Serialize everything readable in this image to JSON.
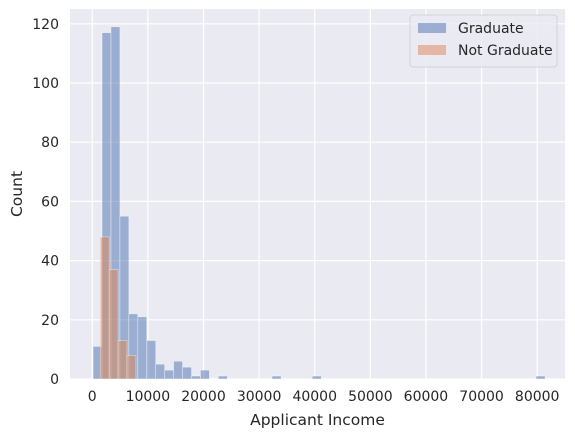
{
  "chart_data": {
    "type": "bar",
    "subtype": "histogram",
    "xlabel": "Applicant Income",
    "ylabel": "Count",
    "xlim": [
      -4000,
      85000
    ],
    "ylim": [
      0,
      125
    ],
    "x_ticks": [
      0,
      10000,
      20000,
      30000,
      40000,
      50000,
      60000,
      70000,
      80000
    ],
    "x_tick_labels": [
      "0",
      "10000",
      "20000",
      "30000",
      "40000",
      "50000",
      "60000",
      "70000",
      "80000"
    ],
    "y_ticks": [
      0,
      20,
      40,
      60,
      80,
      100,
      120
    ],
    "y_tick_labels": [
      "0",
      "20",
      "40",
      "60",
      "80",
      "100",
      "120"
    ],
    "grid": true,
    "background_color": "#eaeaf2",
    "legend_position": "top-right",
    "series": [
      {
        "name": "Graduate",
        "color": "#4c72b0",
        "alpha": 0.5,
        "bins": [
          {
            "x0": 150,
            "x1": 1759,
            "count": 11
          },
          {
            "x0": 1759,
            "x1": 3368,
            "count": 117
          },
          {
            "x0": 3368,
            "x1": 4977,
            "count": 119
          },
          {
            "x0": 4977,
            "x1": 6586,
            "count": 55
          },
          {
            "x0": 6586,
            "x1": 8195,
            "count": 22
          },
          {
            "x0": 8195,
            "x1": 9804,
            "count": 21
          },
          {
            "x0": 9804,
            "x1": 11413,
            "count": 13
          },
          {
            "x0": 11413,
            "x1": 13022,
            "count": 5
          },
          {
            "x0": 13022,
            "x1": 14631,
            "count": 3
          },
          {
            "x0": 14631,
            "x1": 16240,
            "count": 6
          },
          {
            "x0": 16240,
            "x1": 17849,
            "count": 4
          },
          {
            "x0": 17849,
            "x1": 19458,
            "count": 1
          },
          {
            "x0": 19458,
            "x1": 21067,
            "count": 3
          },
          {
            "x0": 22676,
            "x1": 24285,
            "count": 1
          },
          {
            "x0": 32330,
            "x1": 33939,
            "count": 1
          },
          {
            "x0": 39566,
            "x1": 41175,
            "count": 1
          },
          {
            "x0": 79800,
            "x1": 81409,
            "count": 1
          }
        ]
      },
      {
        "name": "Not Graduate",
        "color": "#dd8452",
        "alpha": 0.5,
        "bins": [
          {
            "x0": 1442,
            "x1": 3043,
            "count": 48
          },
          {
            "x0": 3043,
            "x1": 4644,
            "count": 37
          },
          {
            "x0": 4644,
            "x1": 6245,
            "count": 13
          },
          {
            "x0": 6245,
            "x1": 7846,
            "count": 8
          }
        ]
      }
    ]
  }
}
